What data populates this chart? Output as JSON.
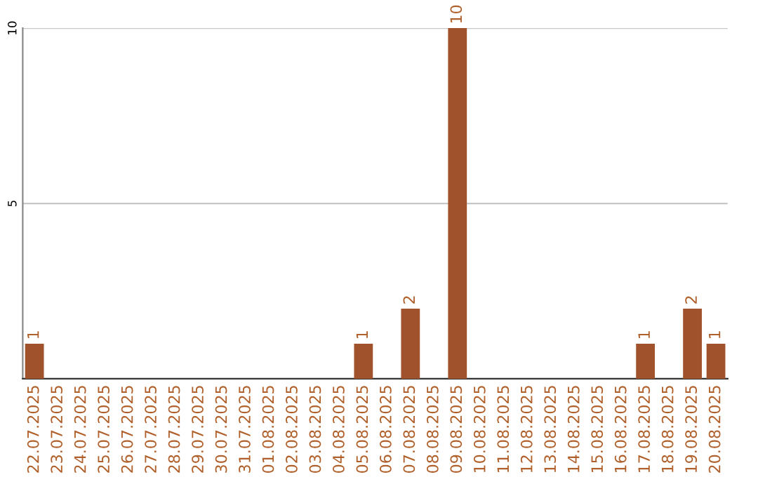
{
  "chart_data": {
    "type": "bar",
    "categories": [
      "22.07.2025",
      "23.07.2025",
      "24.07.2025",
      "25.07.2025",
      "26.07.2025",
      "27.07.2025",
      "28.07.2025",
      "29.07.2025",
      "30.07.2025",
      "31.07.2025",
      "01.08.2025",
      "02.08.2025",
      "03.08.2025",
      "04.08.2025",
      "05.08.2025",
      "06.08.2025",
      "07.08.2025",
      "08.08.2025",
      "09.08.2025",
      "10.08.2025",
      "11.08.2025",
      "12.08.2025",
      "13.08.2025",
      "14.08.2025",
      "15.08.2025",
      "16.08.2025",
      "17.08.2025",
      "18.08.2025",
      "19.08.2025",
      "20.08.2025"
    ],
    "values": [
      1,
      0,
      0,
      0,
      0,
      0,
      0,
      0,
      0,
      0,
      0,
      0,
      0,
      0,
      1,
      0,
      2,
      0,
      10,
      0,
      0,
      0,
      0,
      0,
      0,
      0,
      1,
      0,
      2,
      1
    ],
    "value_labels": [
      "1",
      null,
      null,
      null,
      null,
      null,
      null,
      null,
      null,
      null,
      null,
      null,
      null,
      null,
      "1",
      null,
      "2",
      null,
      "10",
      null,
      null,
      null,
      null,
      null,
      null,
      null,
      "1",
      null,
      "2",
      "1"
    ],
    "color": "#a0522d",
    "ylim": [
      0,
      10
    ],
    "yticks": [
      5,
      10
    ],
    "grid": "y"
  }
}
